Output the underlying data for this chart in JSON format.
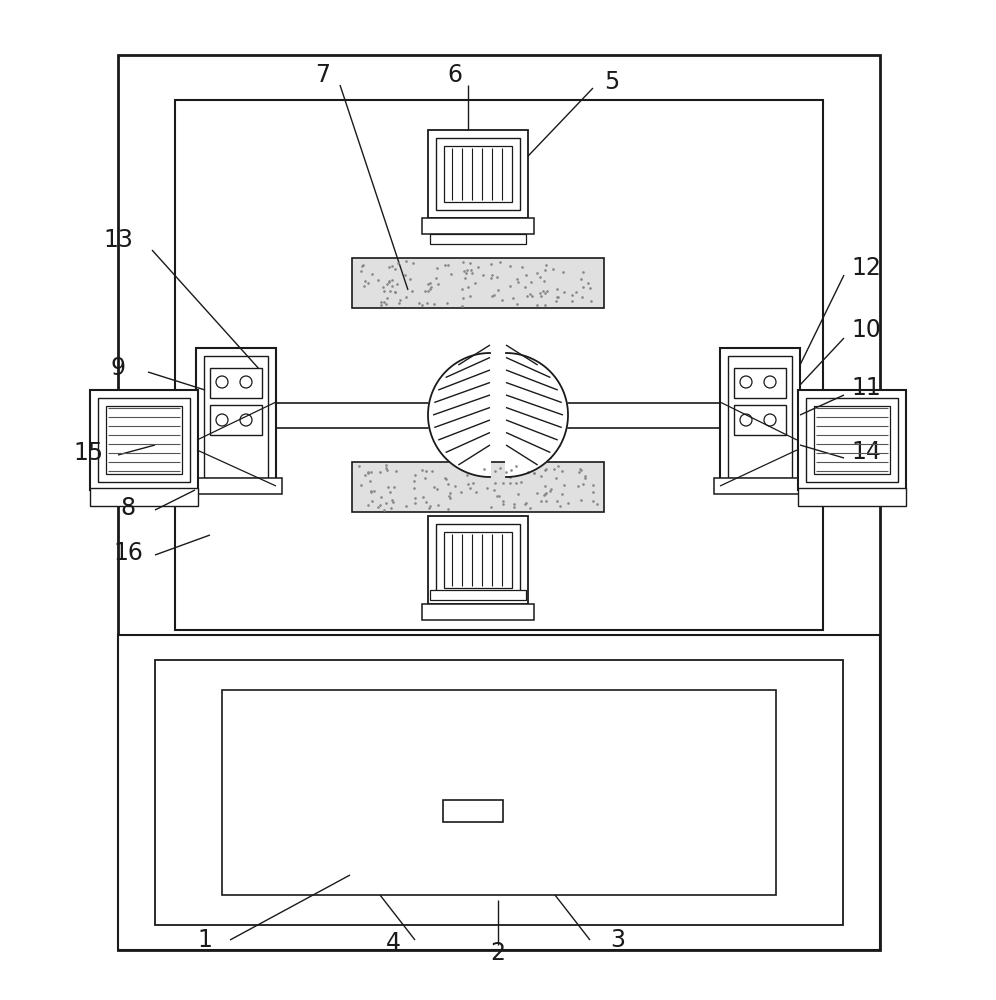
{
  "bg_color": "#ffffff",
  "lc": "#1a1a1a",
  "figsize": [
    9.96,
    10.0
  ],
  "dpi": 100
}
